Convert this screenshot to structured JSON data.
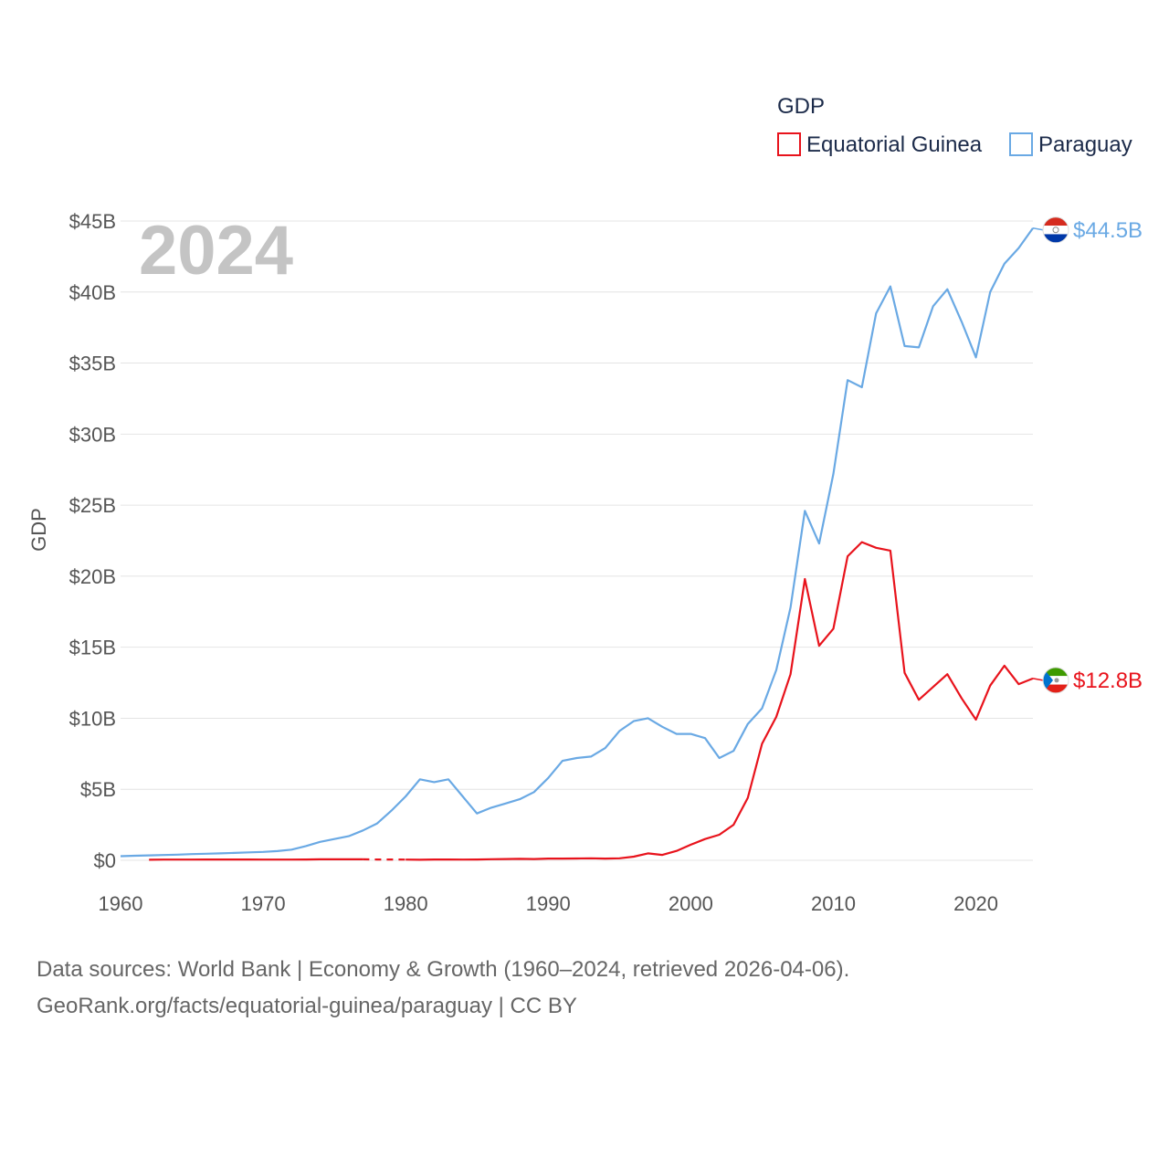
{
  "chart_data": {
    "type": "line",
    "title": "",
    "year_label": "2024",
    "ylabel": "GDP",
    "xlabel": "",
    "legend_title": "GDP",
    "legend_position": "top-right",
    "ylim": [
      0,
      45
    ],
    "xlim": [
      1960,
      2024
    ],
    "x_ticks": [
      "1960",
      "1970",
      "1980",
      "1990",
      "2000",
      "2010",
      "2020"
    ],
    "x_tick_values": [
      1960,
      1970,
      1980,
      1990,
      2000,
      2010,
      2020
    ],
    "y_ticks": [
      "$0",
      "$5B",
      "$10B",
      "$15B",
      "$20B",
      "$25B",
      "$30B",
      "$35B",
      "$40B",
      "$45B"
    ],
    "y_tick_values": [
      0,
      5,
      10,
      15,
      20,
      25,
      30,
      35,
      40,
      45
    ],
    "unit": "billion USD",
    "series": [
      {
        "name": "Equatorial Guinea",
        "color": "#e8131c",
        "end_label": "$12.8B",
        "flag_colors": [
          "#3e9a00",
          "#ffffff",
          "#e32118",
          "#0073ce"
        ],
        "segments": [
          {
            "style": "solid",
            "x": [
              1962,
              1963,
              1964,
              1965,
              1966,
              1967,
              1968,
              1969,
              1970,
              1971,
              1972,
              1973,
              1974,
              1975,
              1976,
              1977
            ],
            "y": [
              0.04,
              0.05,
              0.05,
              0.05,
              0.06,
              0.06,
              0.06,
              0.06,
              0.05,
              0.05,
              0.05,
              0.06,
              0.07,
              0.07,
              0.07,
              0.07
            ]
          },
          {
            "style": "dashed",
            "x": [
              1977,
              1978,
              1979,
              1980
            ],
            "y": [
              0.07,
              0.06,
              0.06,
              0.05
            ]
          },
          {
            "style": "solid",
            "x": [
              1980,
              1981,
              1982,
              1983,
              1984,
              1985,
              1986,
              1987,
              1988,
              1989,
              1990,
              1991,
              1992,
              1993,
              1994,
              1995,
              1996,
              1997,
              1998,
              1999,
              2000,
              2001,
              2002,
              2003,
              2004,
              2005,
              2006,
              2007,
              2008,
              2009,
              2010,
              2011,
              2012,
              2013,
              2014,
              2015,
              2016,
              2017,
              2018,
              2019,
              2020,
              2021,
              2022,
              2023,
              2024
            ],
            "y": [
              0.05,
              0.04,
              0.06,
              0.06,
              0.05,
              0.06,
              0.08,
              0.09,
              0.1,
              0.09,
              0.12,
              0.12,
              0.13,
              0.14,
              0.12,
              0.14,
              0.26,
              0.49,
              0.38,
              0.66,
              1.1,
              1.5,
              1.8,
              2.5,
              4.4,
              8.2,
              10.1,
              13.1,
              19.8,
              15.1,
              16.3,
              21.4,
              22.4,
              22.0,
              21.8,
              13.2,
              11.3,
              12.2,
              13.1,
              11.4,
              9.9,
              12.3,
              13.7,
              12.4,
              12.8
            ]
          }
        ]
      },
      {
        "name": "Paraguay",
        "color": "#6aa9e4",
        "end_label": "$44.5B",
        "flag_colors": [
          "#d52b1e",
          "#ffffff",
          "#0038a8"
        ],
        "segments": [
          {
            "style": "solid",
            "x": [
              1960,
              1961,
              1962,
              1963,
              1964,
              1965,
              1966,
              1967,
              1968,
              1969,
              1970,
              1971,
              1972,
              1973,
              1974,
              1975,
              1976,
              1977,
              1978,
              1979,
              1980,
              1981,
              1982,
              1983,
              1984,
              1985,
              1986,
              1987,
              1988,
              1989,
              1990,
              1991,
              1992,
              1993,
              1994,
              1995,
              1996,
              1997,
              1998,
              1999,
              2000,
              2001,
              2002,
              2003,
              2004,
              2005,
              2006,
              2007,
              2008,
              2009,
              2010,
              2011,
              2012,
              2013,
              2014,
              2015,
              2016,
              2017,
              2018,
              2019,
              2020,
              2021,
              2022,
              2023,
              2024
            ],
            "y": [
              0.29,
              0.32,
              0.35,
              0.37,
              0.4,
              0.44,
              0.46,
              0.49,
              0.52,
              0.56,
              0.59,
              0.65,
              0.75,
              1.0,
              1.3,
              1.5,
              1.7,
              2.1,
              2.6,
              3.5,
              4.5,
              5.7,
              5.5,
              5.7,
              4.5,
              3.3,
              3.7,
              4.0,
              4.3,
              4.8,
              5.8,
              7.0,
              7.2,
              7.3,
              7.9,
              9.1,
              9.8,
              10.0,
              9.4,
              8.9,
              8.9,
              8.6,
              7.2,
              7.7,
              9.6,
              10.7,
              13.4,
              17.8,
              24.6,
              22.3,
              27.2,
              33.8,
              33.3,
              38.5,
              40.4,
              36.2,
              36.1,
              39.0,
              40.2,
              37.9,
              35.4,
              40.0,
              42.0,
              43.1,
              44.5
            ]
          }
        ]
      }
    ]
  },
  "footer": {
    "line1": "Data sources: World Bank | Economy & Growth (1960–2024, retrieved 2026-04-06).",
    "line2": "GeoRank.org/facts/equatorial-guinea/paraguay | CC BY"
  }
}
